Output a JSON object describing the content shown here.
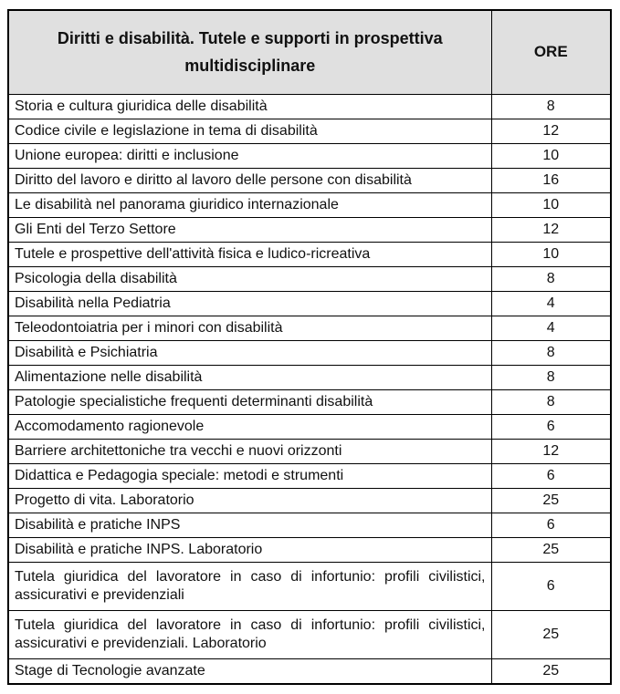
{
  "table": {
    "colors": {
      "page_bg": "#ffffff",
      "header_bg": "#e0e0e0",
      "border": "#000000",
      "row_bg": "#ffffff",
      "text": "#111111"
    },
    "header": {
      "title": "Diritti e disabilità. Tutele e supporti in prospettiva multidisciplinare",
      "hours_label": "ORE"
    },
    "rows": [
      {
        "subject": "Storia e cultura giuridica delle disabilità",
        "ore": "8"
      },
      {
        "subject": "Codice civile e legislazione in tema di disabilità",
        "ore": "12"
      },
      {
        "subject": "Unione europea: diritti e inclusione",
        "ore": "10"
      },
      {
        "subject": "Diritto del lavoro e diritto al lavoro delle persone con disabilità",
        "ore": "16"
      },
      {
        "subject": "Le disabilità nel panorama giuridico internazionale",
        "ore": "10"
      },
      {
        "subject": "Gli Enti del Terzo Settore",
        "ore": "12"
      },
      {
        "subject": "Tutele e prospettive dell'attività fisica e ludico-ricreativa",
        "ore": "10"
      },
      {
        "subject": "Psicologia della disabilità",
        "ore": "8"
      },
      {
        "subject": "Disabilità nella Pediatria",
        "ore": "4"
      },
      {
        "subject": "Teleodontoiatria per i minori con disabilità",
        "ore": "4"
      },
      {
        "subject": "Disabilità e Psichiatria",
        "ore": "8"
      },
      {
        "subject": "Alimentazione nelle disabilità",
        "ore": "8"
      },
      {
        "subject": "Patologie specialistiche frequenti determinanti disabilità",
        "ore": "8"
      },
      {
        "subject": "Accomodamento ragionevole",
        "ore": "6"
      },
      {
        "subject": "Barriere architettoniche tra vecchi e nuovi orizzonti",
        "ore": "12"
      },
      {
        "subject": "Didattica e Pedagogia speciale: metodi e strumenti",
        "ore": "6"
      },
      {
        "subject": "Progetto di vita.  Laboratorio",
        "ore": "25"
      },
      {
        "subject": "Disabilità e pratiche INPS",
        "ore": "6"
      },
      {
        "subject": "Disabilità e pratiche INPS. Laboratorio",
        "ore": "25"
      },
      {
        "subject": "Tutela giuridica del lavoratore in caso di infortunio: profili civilistici, assicurativi e previdenziali",
        "ore": "6"
      },
      {
        "subject": "Tutela giuridica del lavoratore in caso di infortunio: profili civilistici, assicurativi e previdenziali. Laboratorio",
        "ore": "25"
      },
      {
        "subject": "Stage di Tecnologie avanzate",
        "ore": "25"
      }
    ]
  }
}
